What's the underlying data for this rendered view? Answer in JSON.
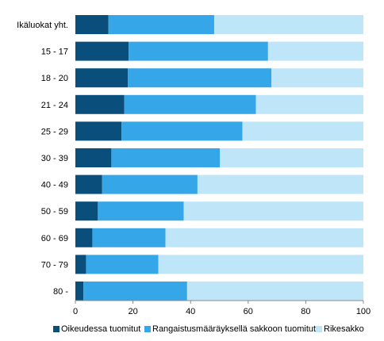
{
  "chart_data": {
    "type": "bar",
    "orientation": "horizontal",
    "stacked": true,
    "title": "",
    "xlabel": "",
    "ylabel": "",
    "xlim": [
      0,
      100
    ],
    "x_ticks": [
      0,
      20,
      40,
      60,
      80,
      100
    ],
    "grid": false,
    "legend_position": "bottom",
    "categories": [
      "Ikäluokat yht.",
      "15 - 17",
      "18 - 20",
      "21 - 24",
      "25 - 29",
      "30 - 39",
      "40 - 49",
      "50 - 59",
      "60 - 69",
      "70 - 79",
      "80 -"
    ],
    "series": [
      {
        "name": "Oikeudessa tuomitut",
        "color": "#0a4f7c",
        "values": [
          11.5,
          18.5,
          18.2,
          17.0,
          16.0,
          12.5,
          9.3,
          7.8,
          5.9,
          3.7,
          2.8
        ]
      },
      {
        "name": "Rangaistusmääräyksellä sakkoon tuomitut",
        "color": "#35a6e8",
        "values": [
          36.7,
          48.4,
          49.9,
          45.7,
          42.0,
          37.7,
          33.1,
          29.8,
          25.4,
          25.1,
          36.0
        ]
      },
      {
        "name": "Rikesakko",
        "color": "#bfe5f9",
        "values": [
          51.8,
          33.1,
          31.9,
          37.3,
          42.0,
          49.8,
          57.6,
          62.4,
          68.7,
          71.2,
          61.2
        ]
      }
    ]
  }
}
